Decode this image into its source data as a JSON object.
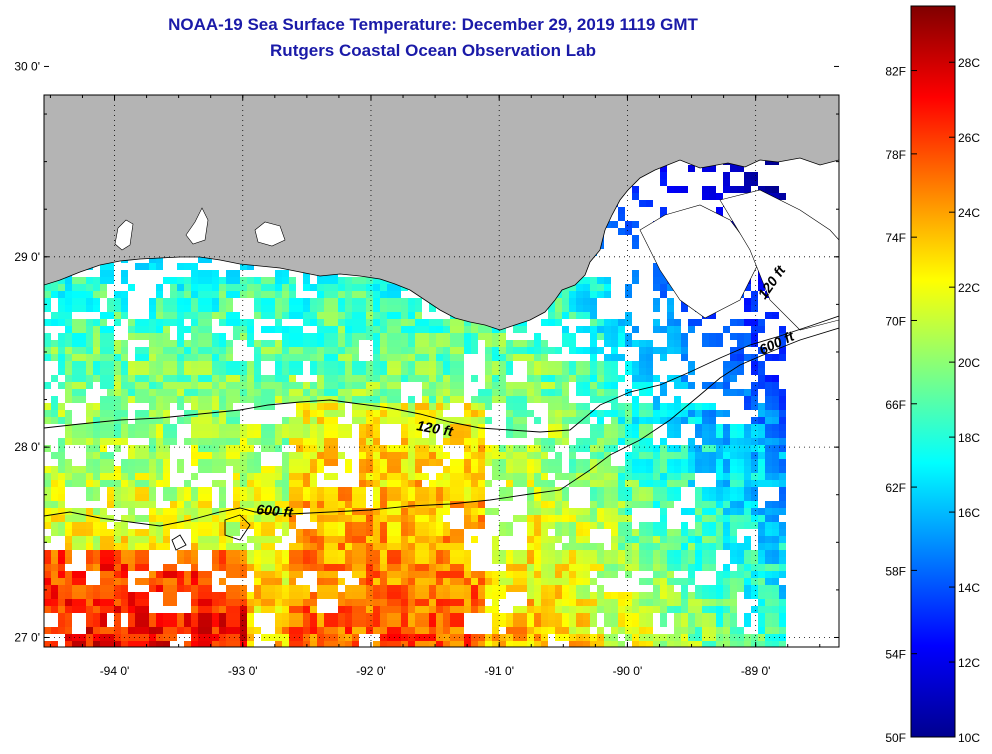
{
  "title": "NOAA-19 Sea Surface Temperature:  December 29, 2019 1119 GMT",
  "subtitle": "Rutgers Coastal Ocean Observation Lab",
  "map": {
    "lon_range": [
      -94.55,
      -88.35
    ],
    "lat_range": [
      26.95,
      29.85
    ],
    "lon_ticks": [
      {
        "value": -94,
        "label": "-94 0'"
      },
      {
        "value": -93,
        "label": "-93 0'"
      },
      {
        "value": -92,
        "label": "-92 0'"
      },
      {
        "value": -91,
        "label": "-91 0'"
      },
      {
        "value": -90,
        "label": "-90 0'"
      },
      {
        "value": -89,
        "label": "-89 0'"
      }
    ],
    "lat_ticks": [
      {
        "value": 30,
        "label": "30 0'"
      },
      {
        "value": 29,
        "label": "29 0'"
      },
      {
        "value": 28,
        "label": "28 0'"
      },
      {
        "value": 27,
        "label": "27 0'"
      }
    ],
    "grid": true,
    "land_color": "#b4b4b4",
    "contours": [
      {
        "label": "120 ft"
      },
      {
        "label": "600 ft"
      },
      {
        "label": "120 ft"
      },
      {
        "label": "600 ft"
      }
    ]
  },
  "colorbar": {
    "min_c": 10,
    "max_c": 29.5,
    "fahrenheit_labels": [
      {
        "value": 82,
        "label": "82F"
      },
      {
        "value": 78,
        "label": "78F"
      },
      {
        "value": 74,
        "label": "74F"
      },
      {
        "value": 70,
        "label": "70F"
      },
      {
        "value": 66,
        "label": "66F"
      },
      {
        "value": 62,
        "label": "62F"
      },
      {
        "value": 58,
        "label": "58F"
      },
      {
        "value": 54,
        "label": "54F"
      },
      {
        "value": 50,
        "label": "50F"
      }
    ],
    "celsius_labels": [
      {
        "value": 28,
        "label": "28C"
      },
      {
        "value": 26,
        "label": "26C"
      },
      {
        "value": 24,
        "label": "24C"
      },
      {
        "value": 22,
        "label": "22C"
      },
      {
        "value": 20,
        "label": "20C"
      },
      {
        "value": 18,
        "label": "18C"
      },
      {
        "value": 16,
        "label": "16C"
      },
      {
        "value": 14,
        "label": "14C"
      },
      {
        "value": 12,
        "label": "12C"
      },
      {
        "value": 10,
        "label": "10C"
      }
    ],
    "colormap": [
      "#00008f",
      "#0000ff",
      "#0080ff",
      "#00ffff",
      "#80ff80",
      "#ffff00",
      "#ff8000",
      "#ff0000",
      "#800000"
    ]
  }
}
